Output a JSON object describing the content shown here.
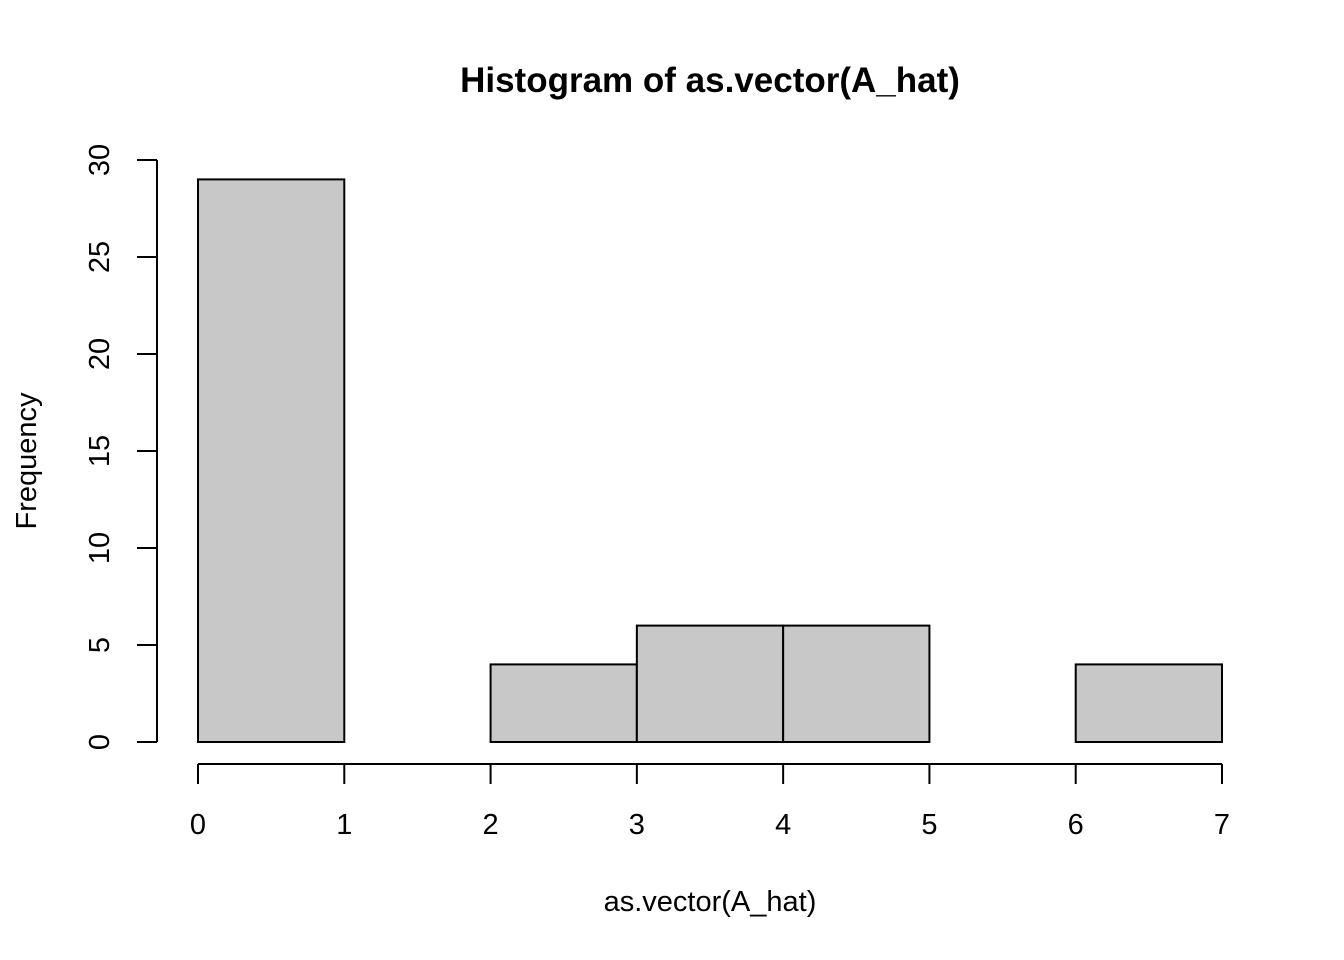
{
  "chart_data": {
    "type": "bar",
    "title": "Histogram of as.vector(A_hat)",
    "xlabel": "as.vector(A_hat)",
    "ylabel": "Frequency",
    "bins": [
      {
        "from": 0,
        "to": 1,
        "count": 29
      },
      {
        "from": 1,
        "to": 2,
        "count": 0
      },
      {
        "from": 2,
        "to": 3,
        "count": 4
      },
      {
        "from": 3,
        "to": 4,
        "count": 6
      },
      {
        "from": 4,
        "to": 5,
        "count": 6
      },
      {
        "from": 5,
        "to": 6,
        "count": 0
      },
      {
        "from": 6,
        "to": 7,
        "count": 4
      }
    ],
    "xlim": [
      0,
      7
    ],
    "ylim": [
      0,
      30
    ],
    "x_ticks": [
      "0",
      "1",
      "2",
      "3",
      "4",
      "5",
      "6",
      "7"
    ],
    "y_ticks": [
      "0",
      "5",
      "10",
      "15",
      "20",
      "25",
      "30"
    ],
    "grid": false,
    "bar_fill": "#c8c8c8",
    "bar_stroke": "#000000"
  }
}
